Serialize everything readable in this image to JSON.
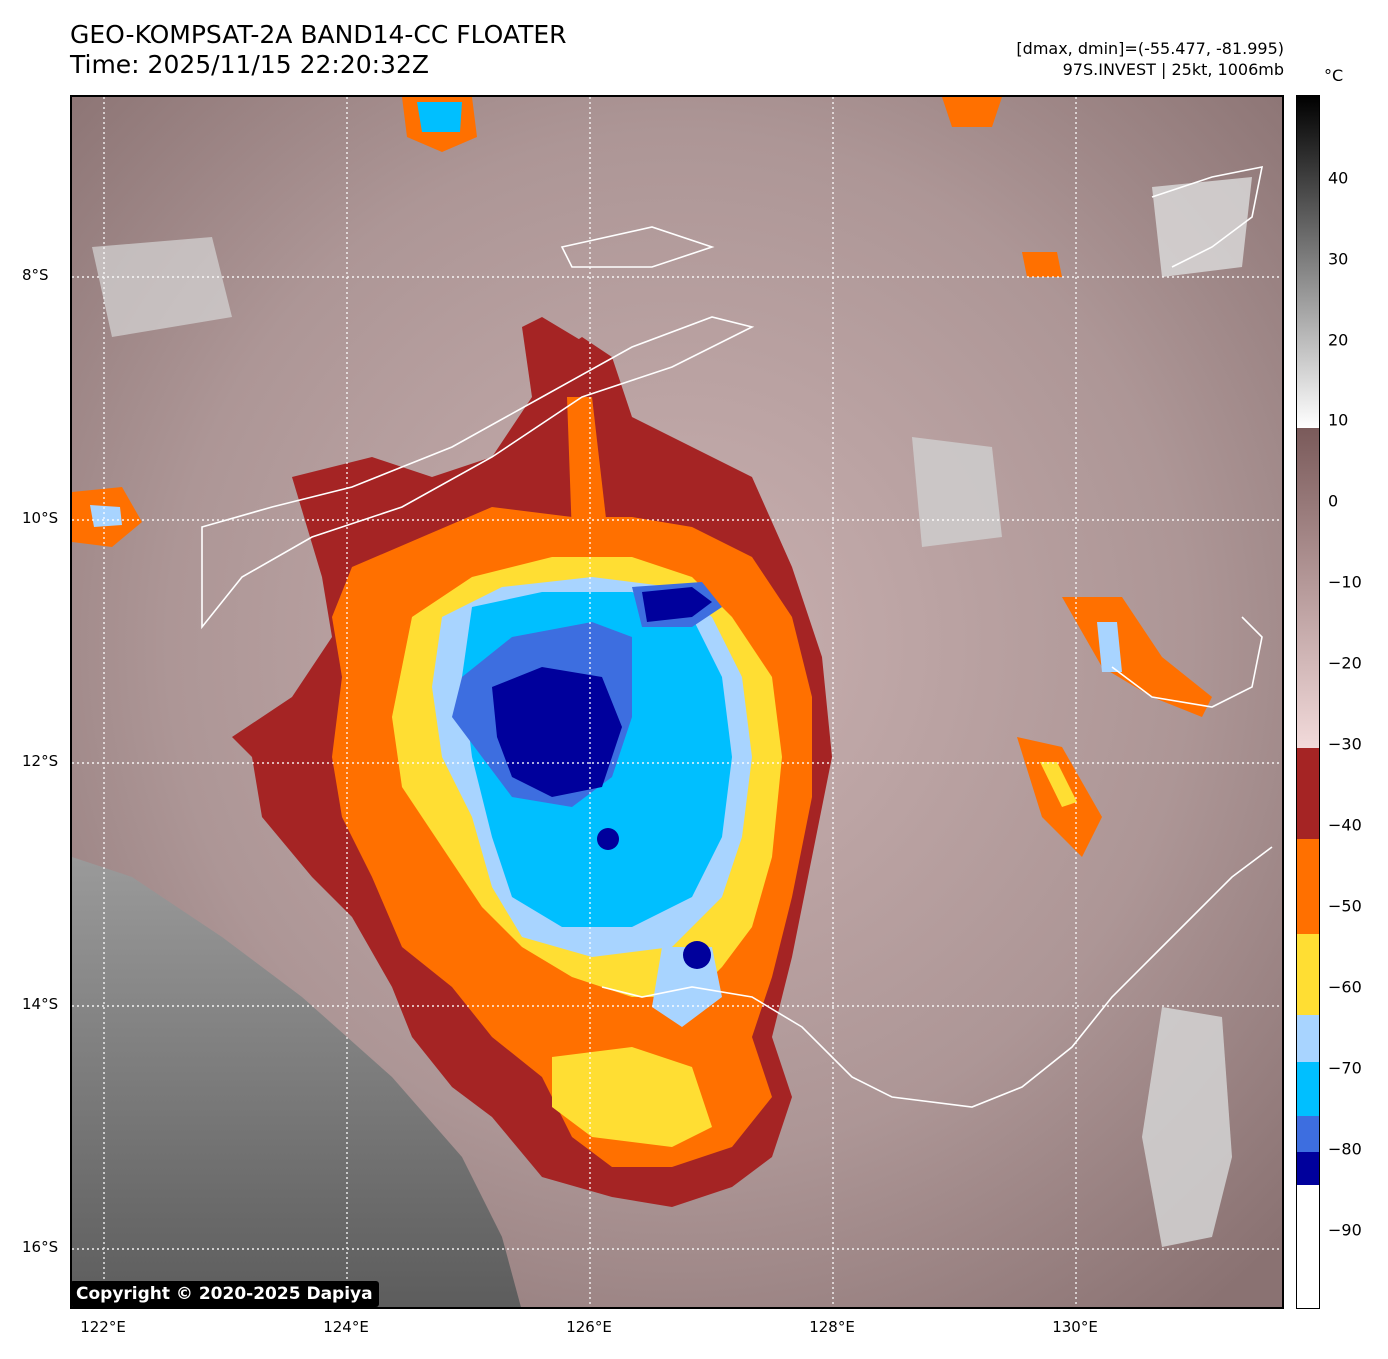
{
  "header": {
    "title_line1": "GEO-KOMPSAT-2A BAND14-CC FLOATER",
    "title_line2": "Time: 2025/11/15 22:20:32Z",
    "range_text": "[dmax, dmin]=(-55.477, -81.995)",
    "storm_text": "97S.INVEST | 25kt, 1006mb"
  },
  "map": {
    "lat_labels": [
      "8°S",
      "10°S",
      "12°S",
      "14°S",
      "16°S"
    ],
    "lon_labels": [
      "122°E",
      "124°E",
      "126°E",
      "128°E",
      "130°E"
    ],
    "copyright": "Copyright © 2020-2025 Dapiya"
  },
  "colorbar": {
    "unit": "°C",
    "ticks": [
      "40",
      "30",
      "20",
      "10",
      "0",
      "−10",
      "−20",
      "−30",
      "−40",
      "−50",
      "−60",
      "−70",
      "−80",
      "−90"
    ],
    "colors": {
      "dark_red": "#a52424",
      "orange": "#ff7000",
      "yellow": "#ffde33",
      "light_blue": "#a8d4ff",
      "cyan": "#00bfff",
      "blue": "#3d6ee0",
      "navy": "#00009c",
      "mauve": "#b09898"
    }
  }
}
